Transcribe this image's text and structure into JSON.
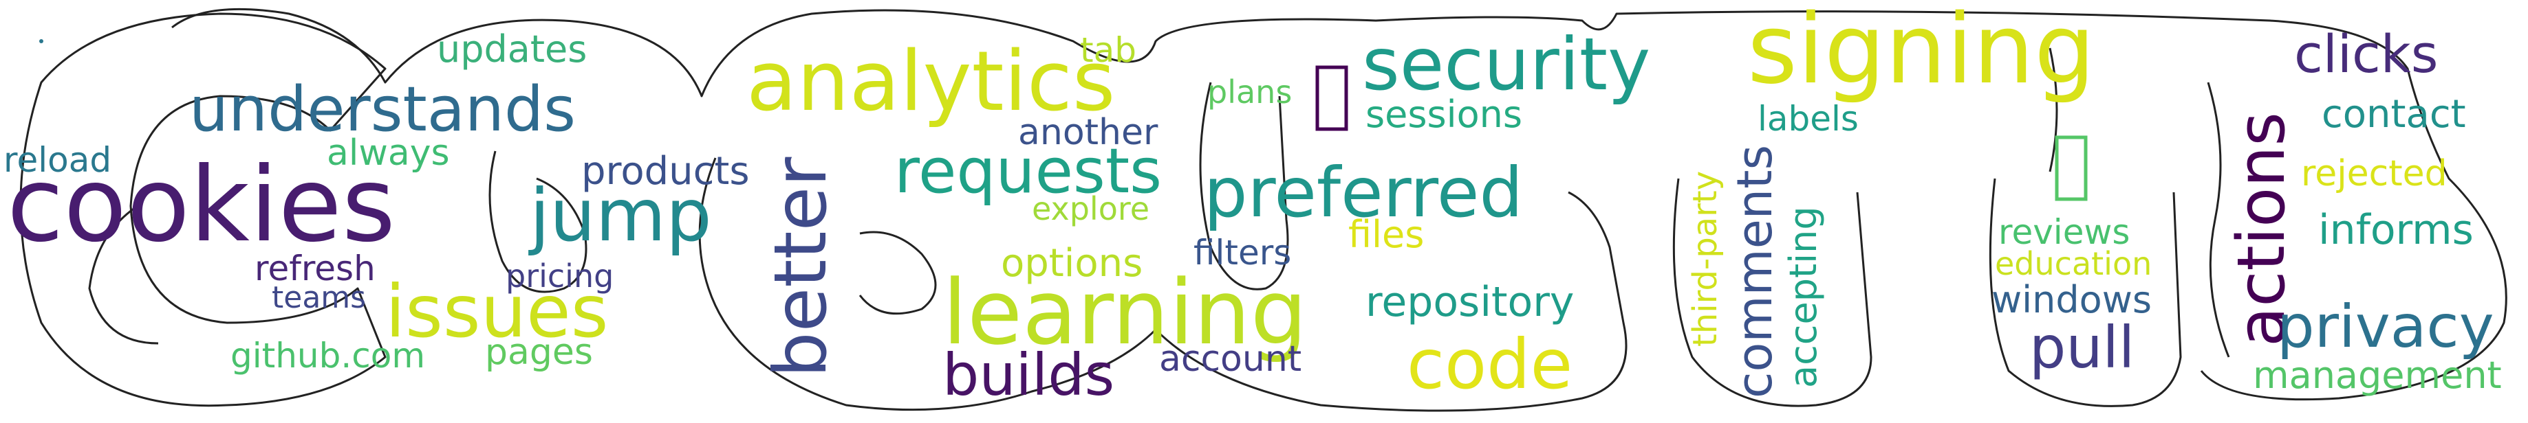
{
  "words": [
    {
      "text": "cookies",
      "color": "#481d6f"
    },
    {
      "text": "understands",
      "color": "#2f6b8e"
    },
    {
      "text": "updates",
      "color": "#3ab07a"
    },
    {
      "text": "always",
      "color": "#3fbc73"
    },
    {
      "text": "reload",
      "color": "#2a788e"
    },
    {
      "text": "jump",
      "color": "#23898e"
    },
    {
      "text": "products",
      "color": "#3b518b"
    },
    {
      "text": "refresh",
      "color": "#482777"
    },
    {
      "text": "teams",
      "color": "#3f4889"
    },
    {
      "text": "pricing",
      "color": "#424086"
    },
    {
      "text": "issues",
      "color": "#cde11d"
    },
    {
      "text": "github.com",
      "color": "#4ac16d"
    },
    {
      "text": "pages",
      "color": "#60ca60"
    },
    {
      "text": "analytics",
      "color": "#d2e21b"
    },
    {
      "text": "tab",
      "color": "#b5de2b"
    },
    {
      "text": "another",
      "color": "#3b528b"
    },
    {
      "text": "requests",
      "color": "#1fa187"
    },
    {
      "text": "explore",
      "color": "#a0da39"
    },
    {
      "text": "better",
      "color": "#3e4a89"
    },
    {
      "text": "options",
      "color": "#b8de29"
    },
    {
      "text": "learning",
      "color": "#bddf26"
    },
    {
      "text": "builds",
      "color": "#471365"
    },
    {
      "text": "account",
      "color": "#433e85"
    },
    {
      "text": "plans",
      "color": "#5ec962"
    },
    {
      "text": "security",
      "color": "#1e9b8a"
    },
    {
      "text": "sessions",
      "color": "#25ab82"
    },
    {
      "text": "preferred",
      "color": "#1f968b"
    },
    {
      "text": "filters",
      "color": "#39558c"
    },
    {
      "text": "files",
      "color": "#dde318"
    },
    {
      "text": "repository",
      "color": "#1e9c89"
    },
    {
      "text": "code",
      "color": "#e2e418"
    },
    {
      "text": "signing",
      "color": "#d8e219"
    },
    {
      "text": "labels",
      "color": "#1f9e89"
    },
    {
      "text": "third-party",
      "color": "#d0e11c"
    },
    {
      "text": "comments",
      "color": "#3b528b"
    },
    {
      "text": "accepting",
      "color": "#20a386"
    },
    {
      "text": "actions",
      "color": "#440154"
    },
    {
      "text": "clicks",
      "color": "#472c7a"
    },
    {
      "text": "contact",
      "color": "#21918c"
    },
    {
      "text": "rejected",
      "color": "#dae319"
    },
    {
      "text": "reviews",
      "color": "#48c16e"
    },
    {
      "text": "education",
      "color": "#cae11f"
    },
    {
      "text": "informs",
      "color": "#1f9f88"
    },
    {
      "text": "windows",
      "color": "#34618d"
    },
    {
      "text": "pull",
      "color": "#433e85"
    },
    {
      "text": "privacy",
      "color": "#2c718e"
    },
    {
      "text": "management",
      "color": "#54c568"
    }
  ]
}
